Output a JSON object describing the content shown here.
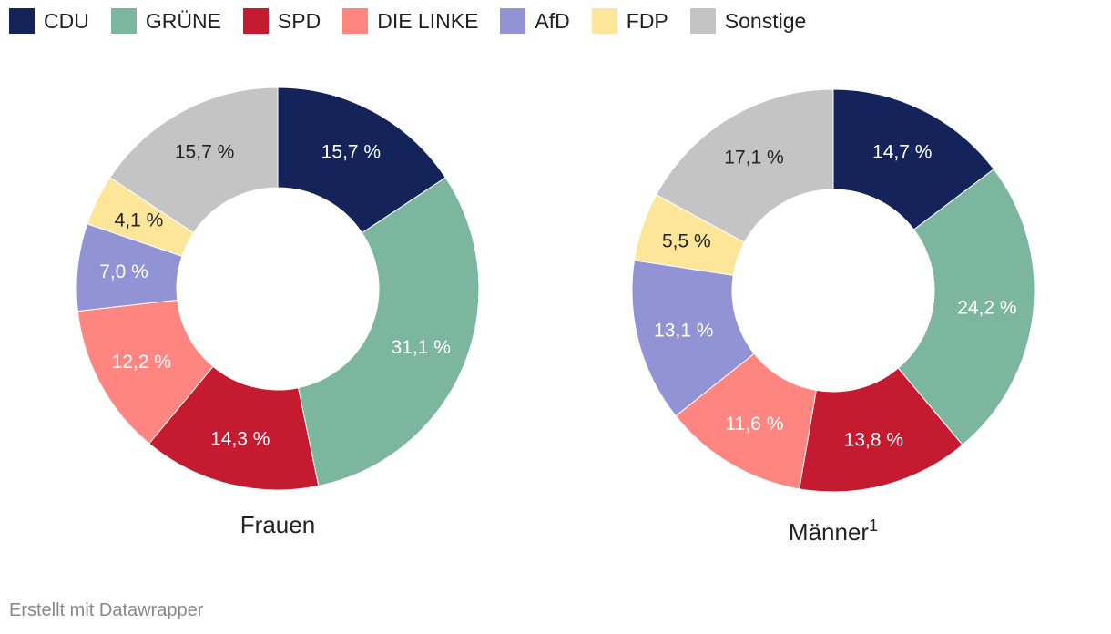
{
  "legend": [
    {
      "label": "CDU",
      "color": "#15235b"
    },
    {
      "label": "GRÜNE",
      "color": "#7cb69e"
    },
    {
      "label": "SPD",
      "color": "#c41b31"
    },
    {
      "label": "DIE LINKE",
      "color": "#fe8580"
    },
    {
      "label": "AfD",
      "color": "#9193d4"
    },
    {
      "label": "FDP",
      "color": "#fde599"
    },
    {
      "label": "Sonstige",
      "color": "#c4c4c4"
    }
  ],
  "chart_data": [
    {
      "type": "pie",
      "title": "Frauen",
      "title_sup": "",
      "categories": [
        "CDU",
        "GRÜNE",
        "SPD",
        "DIE LINKE",
        "AfD",
        "FDP",
        "Sonstige"
      ],
      "values": [
        15.7,
        31.1,
        14.3,
        12.2,
        7.0,
        4.1,
        15.7
      ],
      "labels": [
        "15,7 %",
        "31,1 %",
        "14,3 %",
        "12,2 %",
        "7,0 %",
        "4,1 %",
        "15,7 %"
      ],
      "label_colors": [
        "#ffffff",
        "#ffffff",
        "#ffffff",
        "#ffffff",
        "#ffffff",
        "#222222",
        "#222222"
      ]
    },
    {
      "type": "pie",
      "title": "Männer",
      "title_sup": "1",
      "categories": [
        "CDU",
        "GRÜNE",
        "SPD",
        "DIE LINKE",
        "AfD",
        "FDP",
        "Sonstige"
      ],
      "values": [
        14.7,
        24.2,
        13.8,
        11.6,
        13.1,
        5.5,
        17.1
      ],
      "labels": [
        "14,7 %",
        "24,2 %",
        "13,8 %",
        "11,6 %",
        "13,1 %",
        "5,5 %",
        "17,1 %"
      ],
      "label_colors": [
        "#ffffff",
        "#ffffff",
        "#ffffff",
        "#ffffff",
        "#ffffff",
        "#222222",
        "#222222"
      ]
    }
  ],
  "footer": "Erstellt mit Datawrapper"
}
